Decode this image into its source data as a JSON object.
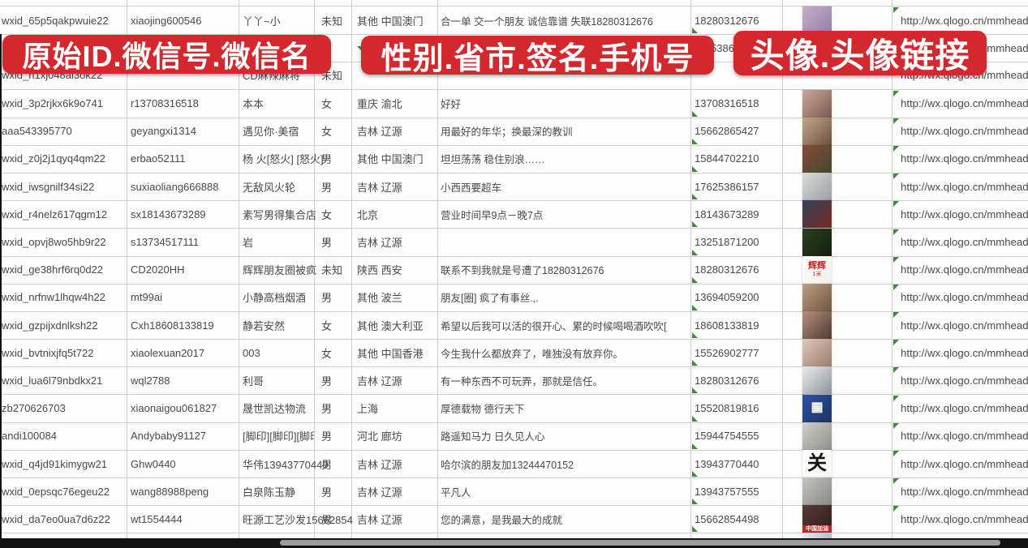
{
  "banners": {
    "id_banner": "原始ID.微信号.微信名",
    "profile_banner": "性别.省市.签名.手机号",
    "avatar_banner": "头像.头像链接"
  },
  "colors": {
    "banner_red": "#d2282e",
    "grid_line": "#cfcfcf",
    "cell_text": "#4a4a4a",
    "marker_green": "#3f8a3a"
  },
  "rows": [
    {
      "wxid": "wxid_65p5qakpwuie22",
      "wechat_id": "xiaojing600546",
      "name": "丫丫~小",
      "gender": "未知",
      "region": "其他 中国澳门",
      "signature": "合一单 交一个朋友 诚信靠谱 失联18280312676",
      "phone": "18280312676",
      "url": "http://wx.qlogo.cn/mmhead",
      "avatar": {
        "c1": "#c9aec9",
        "c2": "#8f7fa8"
      }
    },
    {
      "wxid": "",
      "wechat_id": "",
      "name": "",
      "gender": "",
      "region": "",
      "signature": "",
      "phone": "5386",
      "phone_pad": true,
      "url": "http://wx.qlogo.cn/mmhead",
      "avatar": {
        "c1": "#aebdd4",
        "c2": "#6c83a8"
      }
    },
    {
      "wxid": "wxid_h1xj048al3ok22",
      "wechat_id": "",
      "name": "CD麻辣麻将",
      "gender": "未知",
      "region": "",
      "signature": "",
      "phone": "",
      "url": "http://wx.qlogo.cn/mmhead",
      "avatar": null
    },
    {
      "wxid": "wxid_3p2rjkx6k9o741",
      "wechat_id": "r13708316518",
      "name": "本本",
      "gender": "女",
      "region": "重庆 渝北",
      "signature": "好好",
      "phone": "13708316518",
      "url": "http://wx.qlogo.cn/mmhead",
      "avatar": {
        "c1": "#caa89a",
        "c2": "#7d5a52"
      }
    },
    {
      "wxid": "aaa543395770",
      "wechat_id": "geyangxi1314",
      "name": "遇见你·美宿",
      "gender": "女",
      "region": "吉林 辽源",
      "signature": "用最好的年华；换最深的教训",
      "phone": "15662865427",
      "url": "http://wx.qlogo.cn/mmhead",
      "avatar": {
        "c1": "#c2a98c",
        "c2": "#6b513c"
      }
    },
    {
      "wxid": "wxid_z0j2j1qyq4qm22",
      "wechat_id": "erbao52111",
      "name": "杨 火[怒火] [怒火]",
      "gender": "男",
      "region": "其他 中国澳门",
      "signature": "坦坦荡荡 稳住别浪……",
      "phone": "15844702210",
      "url": "http://wx.qlogo.cn/mmhead",
      "avatar": {
        "c1": "#8a4a3a",
        "c2": "#3f4a2e"
      }
    },
    {
      "wxid": "wxid_iwsgnilf34si22",
      "wechat_id": "suxiaoliang666888",
      "name": "无敌风火轮",
      "gender": "男",
      "region": "吉林 辽源",
      "signature": "小西西要超车",
      "phone": "17625386157",
      "url": "http://wx.qlogo.cn/mmhead",
      "avatar": {
        "c1": "#dcdcd8",
        "c2": "#9aa0a6"
      }
    },
    {
      "wxid": "wxid_r4nelz617qgm12",
      "wechat_id": "sx18143673289",
      "name": "素写男得集合店",
      "gender": "女",
      "region": "北京",
      "signature": "营业时间早9点－晚7点",
      "phone": "18143673289",
      "url": "http://wx.qlogo.cn/mmhead",
      "avatar": {
        "c1": "#31435c",
        "c2": "#7a2b22"
      }
    },
    {
      "wxid": "wxid_opvj8wo5hb9r22",
      "wechat_id": "s13734517111",
      "name": "岩",
      "gender": "男",
      "region": "吉林 辽源",
      "signature": "",
      "phone": "13251871200",
      "url": "http://wx.qlogo.cn/mmhead",
      "avatar": {
        "c1": "#2c3f22",
        "c2": "#141f0e"
      }
    },
    {
      "wxid": "wxid_ge38hrf6rq0d22",
      "wechat_id": "CD2020HH",
      "name": "辉辉朋友圈被疯",
      "gender": "未知",
      "region": "陕西 西安",
      "signature": "联系不到我就是号遭了18280312676",
      "phone": "18280312676",
      "url": "http://wx.qlogo.cn/mmhead",
      "avatar": {
        "c1": "#ffffff",
        "c2": "#f3efe9",
        "label": "辉辉",
        "labelColor": "#cc2222",
        "labelSize": "11px",
        "sub": "1米",
        "subColor": "#cc2222"
      }
    },
    {
      "wxid": "wxid_nrfnw1lhqw4h22",
      "wechat_id": "mt99ai",
      "name": "小静高档烟酒",
      "gender": "男",
      "region": "其他 波兰",
      "signature": "朋友[圈] 疯了有事丝.,.",
      "phone": "13694059200",
      "url": "http://wx.qlogo.cn/mmhead",
      "avatar": {
        "c1": "#bba083",
        "c2": "#6e5640"
      }
    },
    {
      "wxid": "wxid_gzpijxdnlksh22",
      "wechat_id": "Cxh18608133819",
      "name": "静若安然",
      "gender": "女",
      "region": "其他 澳大利亚",
      "signature": "希望以后我可以活的很开心、累的时候喝喝酒吹吹[",
      "phone": "18608133819",
      "url": "http://wx.qlogo.cn/mmhead",
      "avatar": {
        "c1": "#b98f7d",
        "c2": "#4f3a33"
      }
    },
    {
      "wxid": "wxid_bvtnixjfq5t722",
      "wechat_id": "xiaolexuan2017",
      "name": "003",
      "gender": "女",
      "region": "其他 中国香港",
      "signature": "今生我什么都放弃了，唯独没有放弃你。",
      "phone": "15526902777",
      "url": "http://wx.qlogo.cn/mmhead",
      "avatar": {
        "c1": "#e0c8bd",
        "c2": "#9c7b6e"
      }
    },
    {
      "wxid": "wxid_lua6l79nbdkx21",
      "wechat_id": "wql2788",
      "name": "利哥",
      "gender": "男",
      "region": "吉林 辽源",
      "signature": "有一种东西不可玩弄，那就是信任。",
      "phone": "18280312676",
      "url": "http://wx.qlogo.cn/mmhead",
      "avatar": {
        "c1": "#ececec",
        "c2": "#8c949c"
      }
    },
    {
      "wxid": "zb270626703",
      "wechat_id": "xiaonaigou061827",
      "name": "晟世凯达物流",
      "gender": "男",
      "region": "上海",
      "signature": "厚德载物 德行天下",
      "phone": "15520819816",
      "url": "http://wx.qlogo.cn/mmhead",
      "avatar": {
        "c1": "#2f52a0",
        "c2": "#1b3468",
        "icon": "qr-code",
        "labelColor": "#ffffff",
        "labelSize": "16px"
      }
    },
    {
      "wxid": "andi100084",
      "wechat_id": "Andybaby91127",
      "name": "[脚印][脚印][脚印][脚印",
      "clip_name": true,
      "gender": "男",
      "region": "河北 廊坊",
      "signature": "路遥知马力 日久见人心",
      "phone": "15944754555",
      "url": "http://wx.qlogo.cn/mmhead",
      "avatar": {
        "c1": "#cfcfcb",
        "c2": "#8f8f89"
      }
    },
    {
      "wxid": "wxid_q4jd91kimygw21",
      "wechat_id": "Ghw0440",
      "name": "华伟13943770440",
      "gender": "男",
      "region": "吉林 辽源",
      "signature": "哈尔滨的朋友加13244470152",
      "phone": "13943770440",
      "url": "http://wx.qlogo.cn/mmhead",
      "avatar": {
        "c1": "#ffffff",
        "c2": "#f6f6f2",
        "label": "关",
        "labelColor": "#111111",
        "labelSize": "24px"
      }
    },
    {
      "wxid": "wxid_0epsqc76egeu22",
      "wechat_id": "wang88988peng",
      "name": "白泉陈玉静",
      "gender": "男",
      "region": "吉林 辽源",
      "signature": "平凡人",
      "phone": "13943757555",
      "url": "http://wx.qlogo.cn/mmhead",
      "avatar": {
        "c1": "#c4c4c0",
        "c2": "#888884"
      }
    },
    {
      "wxid": "wxid_da7eo0ua7d6z22",
      "wechat_id": "wt1554444",
      "name": "旺源工艺沙发15662854",
      "gender": "男",
      "region": "吉林 辽源",
      "signature": "您的满意，是我最大的成就",
      "phone": "15662854498",
      "url": "http://wx.qlogo.cn/mmhead",
      "avatar": {
        "c1": "#5a3a34",
        "c2": "#2e1f1c",
        "label": "中国加油",
        "labelColor": "#ffffff",
        "labelSize": "7px",
        "labelBg": "#c0252a"
      }
    },
    {
      "wxid": "",
      "wechat_id": "",
      "name": "",
      "gender": "",
      "region": "",
      "signature": "",
      "phone": "",
      "url": "",
      "partial": true,
      "avatar": {
        "c1": "#e8eef4",
        "c2": "#7e9cc0"
      }
    }
  ]
}
